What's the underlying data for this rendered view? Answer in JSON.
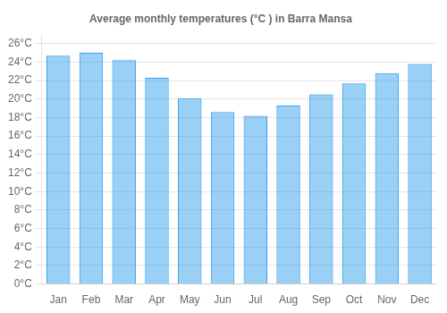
{
  "chart_data": {
    "type": "bar",
    "title": "Average monthly temperatures (°C ) in Barra Mansa",
    "categories": [
      "Jan",
      "Feb",
      "Mar",
      "Apr",
      "May",
      "Jun",
      "Jul",
      "Aug",
      "Sep",
      "Oct",
      "Nov",
      "Dec"
    ],
    "values": [
      24.7,
      25.0,
      24.2,
      22.3,
      20.1,
      18.6,
      18.2,
      19.3,
      20.5,
      21.7,
      22.8,
      23.8
    ],
    "ylim": [
      0,
      27
    ],
    "yticks": [
      {
        "value": 0,
        "label": "0°C"
      },
      {
        "value": 2,
        "label": "2°C"
      },
      {
        "value": 4,
        "label": "4°C"
      },
      {
        "value": 6,
        "label": "6°C"
      },
      {
        "value": 8,
        "label": "8°C"
      },
      {
        "value": 10,
        "label": "10°C"
      },
      {
        "value": 12,
        "label": "12°C"
      },
      {
        "value": 14,
        "label": "14°C"
      },
      {
        "value": 16,
        "label": "16°C"
      },
      {
        "value": 18,
        "label": "18°C"
      },
      {
        "value": 20,
        "label": "20°C"
      },
      {
        "value": 22,
        "label": "22°C"
      },
      {
        "value": 24,
        "label": "24°C"
      },
      {
        "value": 26,
        "label": "26°C"
      }
    ],
    "grid": true
  }
}
